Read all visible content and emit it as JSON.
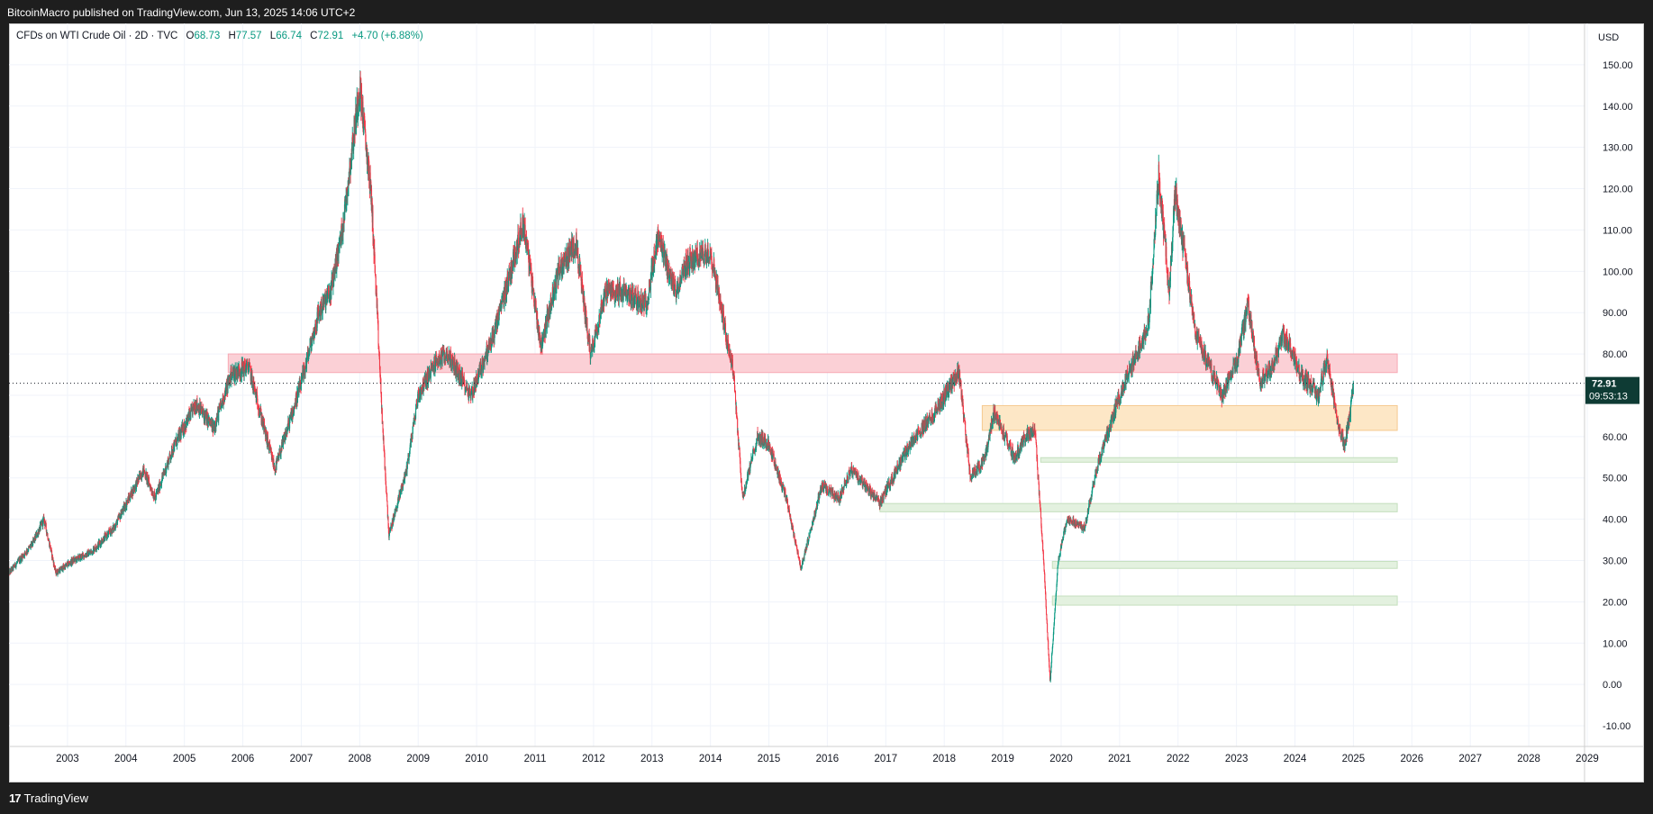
{
  "header": {
    "publisher_line": "BitcoinMacro published on TradingView.com, Jun 13, 2025 14:06 UTC+2"
  },
  "legend": {
    "symbol": "CFDs on WTI Crude Oil · 2D · TVC",
    "open_label": "O",
    "open": "68.73",
    "high_label": "H",
    "high": "77.57",
    "low_label": "L",
    "low": "66.74",
    "close_label": "C",
    "close": "72.91",
    "change": "+4.70 (+6.88%)"
  },
  "currency": "USD",
  "price_tag": {
    "price": "72.91",
    "countdown": "09:53:13"
  },
  "footer": {
    "brand": "TradingView",
    "logo_glyph": "17"
  },
  "colors": {
    "up": "#089981",
    "down": "#f23645",
    "resistance_zone": "#fbd0d6",
    "support_zone_orange": "#fde7c6",
    "support_zone_green": "#e3f1df",
    "price_tag_bg": "#0e3b34"
  },
  "chart_data": {
    "type": "candlestick",
    "timeframe": "2D",
    "x_range": [
      2002.5,
      2029.3
    ],
    "ylim": [
      -15,
      160
    ],
    "y_ticks": [
      "-10.00",
      "0.00",
      "10.00",
      "20.00",
      "30.00",
      "40.00",
      "50.00",
      "60.00",
      "70.00",
      "80.00",
      "90.00",
      "100.00",
      "110.00",
      "120.00",
      "130.00",
      "140.00",
      "150.00"
    ],
    "x_ticks": [
      "2003",
      "2004",
      "2005",
      "2006",
      "2007",
      "2008",
      "2009",
      "2010",
      "2011",
      "2012",
      "2013",
      "2014",
      "2015",
      "2016",
      "2017",
      "2018",
      "2019",
      "2020",
      "2021",
      "2022",
      "2023",
      "2024",
      "2025",
      "2026",
      "2027",
      "2028",
      "2029"
    ],
    "last_price": 72.91,
    "price_path": [
      [
        2002.5,
        27
      ],
      [
        2002.9,
        34
      ],
      [
        2003.1,
        40
      ],
      [
        2003.3,
        27
      ],
      [
        2003.6,
        30
      ],
      [
        2003.9,
        32
      ],
      [
        2004.3,
        38
      ],
      [
        2004.8,
        52
      ],
      [
        2005.0,
        45
      ],
      [
        2005.3,
        57
      ],
      [
        2005.7,
        68
      ],
      [
        2006.0,
        62
      ],
      [
        2006.3,
        75
      ],
      [
        2006.6,
        77
      ],
      [
        2006.9,
        60
      ],
      [
        2007.05,
        52
      ],
      [
        2007.5,
        73
      ],
      [
        2007.8,
        90
      ],
      [
        2008.0,
        95
      ],
      [
        2008.2,
        110
      ],
      [
        2008.5,
        145
      ],
      [
        2008.7,
        118
      ],
      [
        2008.9,
        60
      ],
      [
        2009.0,
        36
      ],
      [
        2009.3,
        52
      ],
      [
        2009.5,
        70
      ],
      [
        2009.8,
        78
      ],
      [
        2010.0,
        80
      ],
      [
        2010.4,
        70
      ],
      [
        2010.8,
        85
      ],
      [
        2011.3,
        112
      ],
      [
        2011.6,
        82
      ],
      [
        2011.9,
        100
      ],
      [
        2012.2,
        107
      ],
      [
        2012.45,
        80
      ],
      [
        2012.7,
        95
      ],
      [
        2013.0,
        95
      ],
      [
        2013.4,
        92
      ],
      [
        2013.6,
        108
      ],
      [
        2013.9,
        95
      ],
      [
        2014.1,
        102
      ],
      [
        2014.5,
        105
      ],
      [
        2014.9,
        75
      ],
      [
        2015.05,
        45
      ],
      [
        2015.3,
        60
      ],
      [
        2015.5,
        58
      ],
      [
        2015.8,
        45
      ],
      [
        2016.05,
        28
      ],
      [
        2016.4,
        48
      ],
      [
        2016.7,
        45
      ],
      [
        2016.9,
        52
      ],
      [
        2017.4,
        44
      ],
      [
        2017.9,
        58
      ],
      [
        2018.3,
        65
      ],
      [
        2018.75,
        76
      ],
      [
        2018.95,
        50
      ],
      [
        2019.2,
        55
      ],
      [
        2019.35,
        66
      ],
      [
        2019.7,
        55
      ],
      [
        2019.9,
        60
      ],
      [
        2020.05,
        62
      ],
      [
        2020.2,
        30
      ],
      [
        2020.31,
        0.5
      ],
      [
        2020.45,
        30
      ],
      [
        2020.6,
        40
      ],
      [
        2020.9,
        38
      ],
      [
        2021.1,
        52
      ],
      [
        2021.5,
        70
      ],
      [
        2021.8,
        80
      ],
      [
        2022.0,
        88
      ],
      [
        2022.17,
        123
      ],
      [
        2022.35,
        95
      ],
      [
        2022.45,
        120
      ],
      [
        2022.8,
        85
      ],
      [
        2023.0,
        78
      ],
      [
        2023.25,
        70
      ],
      [
        2023.5,
        78
      ],
      [
        2023.7,
        92
      ],
      [
        2023.9,
        73
      ],
      [
        2024.1,
        76
      ],
      [
        2024.3,
        85
      ],
      [
        2024.6,
        75
      ],
      [
        2024.9,
        70
      ],
      [
        2025.05,
        79
      ],
      [
        2025.25,
        62
      ],
      [
        2025.35,
        58
      ],
      [
        2025.45,
        66
      ],
      [
        2025.5,
        72.91
      ]
    ],
    "zones": [
      {
        "role": "resistance",
        "from_year": 2006.25,
        "to_year": 2026.25,
        "low": 75.5,
        "high": 80.0
      },
      {
        "role": "support",
        "from_year": 2019.15,
        "to_year": 2026.25,
        "low": 61.5,
        "high": 67.5
      },
      {
        "role": "support",
        "from_year": 2020.15,
        "to_year": 2026.25,
        "low": 53.8,
        "high": 54.9
      },
      {
        "role": "support",
        "from_year": 2017.4,
        "to_year": 2026.25,
        "low": 41.8,
        "high": 43.8
      },
      {
        "role": "support",
        "from_year": 2020.35,
        "to_year": 2026.25,
        "low": 28.1,
        "high": 29.8
      },
      {
        "role": "support",
        "from_year": 2020.35,
        "to_year": 2026.25,
        "low": 19.2,
        "high": 21.4
      }
    ]
  }
}
